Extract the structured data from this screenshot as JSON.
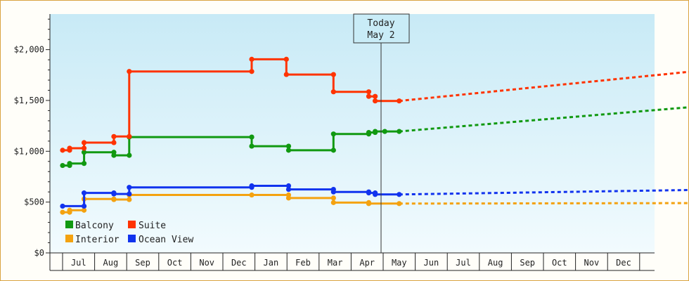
{
  "chart_data": {
    "type": "line",
    "title": "",
    "xlabel": "",
    "ylabel": "",
    "x_ticks": [
      "Jul",
      "Aug",
      "Sep",
      "Oct",
      "Nov",
      "Dec",
      "Jan",
      "Feb",
      "Mar",
      "Apr",
      "May",
      "Jun",
      "Jul",
      "Aug",
      "Sep",
      "Oct",
      "Nov",
      "Dec"
    ],
    "y_ticks": [
      "$0",
      "$500",
      "$1,000",
      "$1,500",
      "$2,000"
    ],
    "ylim": [
      0,
      2350
    ],
    "today": {
      "line1": "Today",
      "line2": "May 2"
    },
    "legend": {
      "placement": "bottom-left",
      "items": [
        {
          "name": "Balcony",
          "color": "#119911"
        },
        {
          "name": "Suite",
          "color": "#ff3300"
        },
        {
          "name": "Interior",
          "color": "#f4a210"
        },
        {
          "name": "Ocean View",
          "color": "#1133ee"
        }
      ]
    },
    "series": [
      {
        "name": "Balcony",
        "color": "#119911",
        "points": [
          [
            0,
            860
          ],
          [
            0.22,
            860
          ],
          [
            0.22,
            880
          ],
          [
            0.67,
            880
          ],
          [
            0.67,
            990
          ],
          [
            1.6,
            990
          ],
          [
            1.6,
            960
          ],
          [
            2.08,
            960
          ],
          [
            2.08,
            1140
          ],
          [
            5.9,
            1140
          ],
          [
            5.9,
            1050
          ],
          [
            7.05,
            1050
          ],
          [
            7.05,
            1010
          ],
          [
            8.45,
            1010
          ],
          [
            8.45,
            1170
          ],
          [
            9.55,
            1170
          ],
          [
            9.55,
            1185
          ],
          [
            9.75,
            1185
          ],
          [
            9.75,
            1195
          ],
          [
            10.05,
            1195
          ],
          [
            10.05,
            1195
          ],
          [
            10.5,
            1195
          ]
        ],
        "forecast": [
          [
            10.5,
            1195
          ],
          [
            19.8,
            1440
          ]
        ]
      },
      {
        "name": "Suite",
        "color": "#ff3300",
        "points": [
          [
            0,
            1010
          ],
          [
            0.22,
            1010
          ],
          [
            0.22,
            1030
          ],
          [
            0.67,
            1030
          ],
          [
            0.67,
            1085
          ],
          [
            1.6,
            1085
          ],
          [
            1.6,
            1145
          ],
          [
            2.08,
            1145
          ],
          [
            2.08,
            1785
          ],
          [
            5.9,
            1785
          ],
          [
            5.9,
            1905
          ],
          [
            6.98,
            1905
          ],
          [
            6.98,
            1755
          ],
          [
            8.45,
            1755
          ],
          [
            8.45,
            1585
          ],
          [
            9.55,
            1585
          ],
          [
            9.55,
            1540
          ],
          [
            9.75,
            1540
          ],
          [
            9.75,
            1495
          ],
          [
            10.5,
            1495
          ]
        ],
        "forecast": [
          [
            10.5,
            1495
          ],
          [
            19.8,
            1790
          ]
        ]
      },
      {
        "name": "Interior",
        "color": "#f4a210",
        "points": [
          [
            0,
            400
          ],
          [
            0.22,
            400
          ],
          [
            0.22,
            420
          ],
          [
            0.67,
            420
          ],
          [
            0.67,
            530
          ],
          [
            1.6,
            530
          ],
          [
            1.6,
            525
          ],
          [
            2.08,
            525
          ],
          [
            2.08,
            570
          ],
          [
            5.9,
            570
          ],
          [
            5.9,
            570
          ],
          [
            7.05,
            570
          ],
          [
            7.05,
            540
          ],
          [
            8.45,
            540
          ],
          [
            8.45,
            495
          ],
          [
            9.55,
            495
          ],
          [
            9.55,
            485
          ],
          [
            10.5,
            485
          ]
        ],
        "forecast": [
          [
            10.5,
            485
          ],
          [
            19.8,
            490
          ]
        ]
      },
      {
        "name": "Ocean View",
        "color": "#1133ee",
        "points": [
          [
            0,
            460
          ],
          [
            0.67,
            460
          ],
          [
            0.67,
            590
          ],
          [
            1.6,
            590
          ],
          [
            1.6,
            580
          ],
          [
            2.08,
            580
          ],
          [
            2.08,
            645
          ],
          [
            5.9,
            645
          ],
          [
            5.9,
            660
          ],
          [
            7.05,
            660
          ],
          [
            7.05,
            625
          ],
          [
            8.45,
            625
          ],
          [
            8.45,
            600
          ],
          [
            9.55,
            600
          ],
          [
            9.55,
            590
          ],
          [
            9.75,
            590
          ],
          [
            9.75,
            575
          ],
          [
            10.5,
            575
          ]
        ],
        "forecast": [
          [
            10.5,
            575
          ],
          [
            19.8,
            620
          ]
        ]
      }
    ]
  }
}
